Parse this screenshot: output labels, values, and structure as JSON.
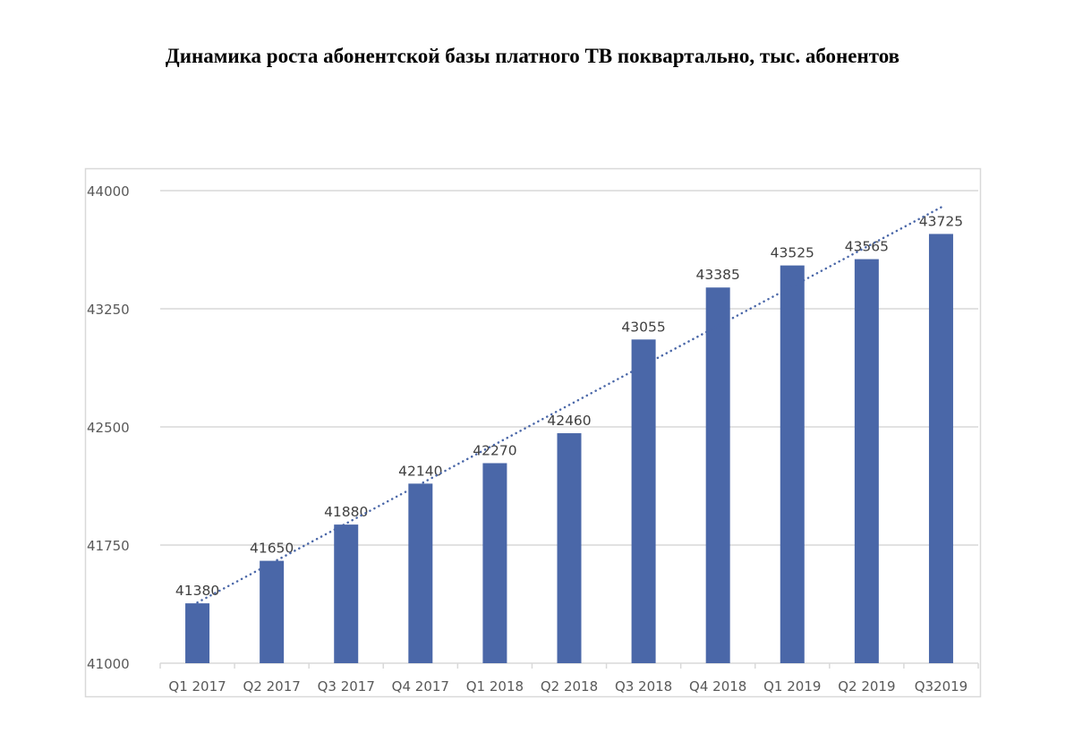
{
  "chart_data": {
    "type": "bar",
    "title": "Динамика роста абонентской базы платного ТВ поквартально, тыс. абонентов",
    "categories": [
      "Q1  2017",
      "Q2  2017",
      "Q3  2017",
      "Q4  2017",
      "Q1  2018",
      "Q2  2018",
      "Q3  2018",
      "Q4  2018",
      "Q1  2019",
      "Q2  2019",
      "Q32019"
    ],
    "values": [
      41380,
      41650,
      41880,
      42140,
      42270,
      42460,
      43055,
      43385,
      43525,
      43565,
      43725
    ],
    "ylim": [
      41000,
      44000
    ],
    "yticks": [
      41000,
      41750,
      42500,
      43250,
      44000
    ],
    "xlabel": "",
    "ylabel": "",
    "grid": true,
    "data_labels": true,
    "trendline": "linear",
    "bar_color": "#4a67a8",
    "trend_color": "#4a67a8"
  }
}
